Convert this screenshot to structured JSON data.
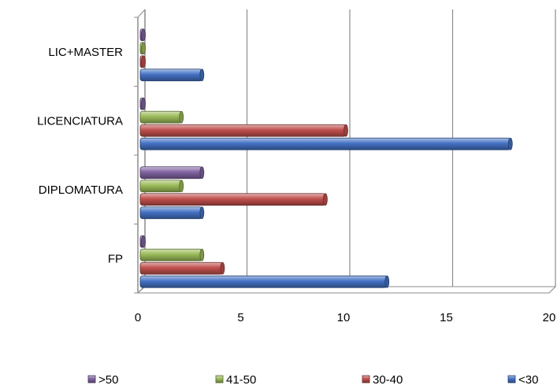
{
  "chart_data": {
    "type": "bar",
    "orientation": "horizontal",
    "categories": [
      "FP",
      "DIPLOMATURA",
      "LICENCIATURA",
      "LIC+MASTER"
    ],
    "series": [
      {
        "name": "<30",
        "color": "#4472c4",
        "values": [
          12,
          3,
          18,
          3
        ]
      },
      {
        "name": "30-40",
        "color": "#c0504d",
        "values": [
          4,
          9,
          10,
          0
        ]
      },
      {
        "name": "41-50",
        "color": "#9bbb59",
        "values": [
          3,
          2,
          2,
          0
        ]
      },
      {
        "name": ">50",
        "color": "#8064a2",
        "values": [
          0,
          3,
          0,
          0
        ]
      }
    ],
    "x_ticks": [
      "0",
      "5",
      "10",
      "15",
      "20"
    ],
    "xlim": [
      0,
      20
    ],
    "grid": true,
    "legend_position": "bottom",
    "legend_order": [
      ">50",
      "41-50",
      "30-40",
      "<30"
    ],
    "title": "",
    "xlabel": "",
    "ylabel": ""
  }
}
